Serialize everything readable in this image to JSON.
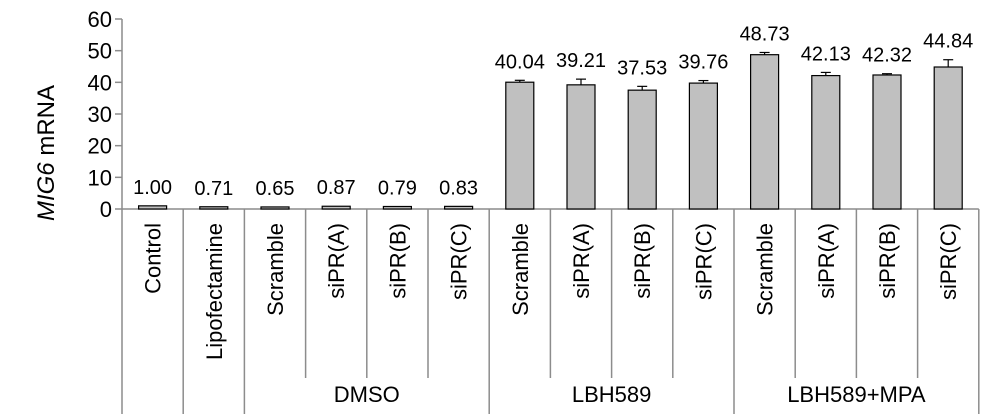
{
  "chart_data": {
    "type": "bar",
    "ylabel_italic": "MIG6",
    "ylabel_rest": " mRNA",
    "ylim": [
      0,
      60
    ],
    "yticks": [
      0,
      10,
      20,
      30,
      40,
      50,
      60
    ],
    "bar_color": "#c0c0c0",
    "categories": [
      "Control",
      "Lipofectamine",
      "Scramble",
      "siPR(A)",
      "siPR(B)",
      "siPR(C)",
      "Scramble",
      "siPR(A)",
      "siPR(B)",
      "siPR(C)",
      "Scramble",
      "siPR(A)",
      "siPR(B)",
      "siPR(C)"
    ],
    "values": [
      1.0,
      0.71,
      0.65,
      0.87,
      0.79,
      0.83,
      40.04,
      39.21,
      37.53,
      39.76,
      48.73,
      42.13,
      42.32,
      44.84
    ],
    "value_labels": [
      "1.00",
      "0.71",
      "0.65",
      "0.87",
      "0.79",
      "0.83",
      "40.04",
      "39.21",
      "37.53",
      "39.76",
      "48.73",
      "42.13",
      "42.32",
      "44.84"
    ],
    "errors": [
      0,
      0,
      0,
      0,
      0,
      0,
      0.6,
      1.8,
      1.2,
      0.8,
      0.7,
      1.0,
      0.4,
      2.3
    ],
    "groups": [
      {
        "label": "DMSO",
        "start": 2,
        "end": 5
      },
      {
        "label": "LBH589",
        "start": 6,
        "end": 9
      },
      {
        "label": "LBH589+MPA",
        "start": 10,
        "end": 13
      }
    ]
  }
}
